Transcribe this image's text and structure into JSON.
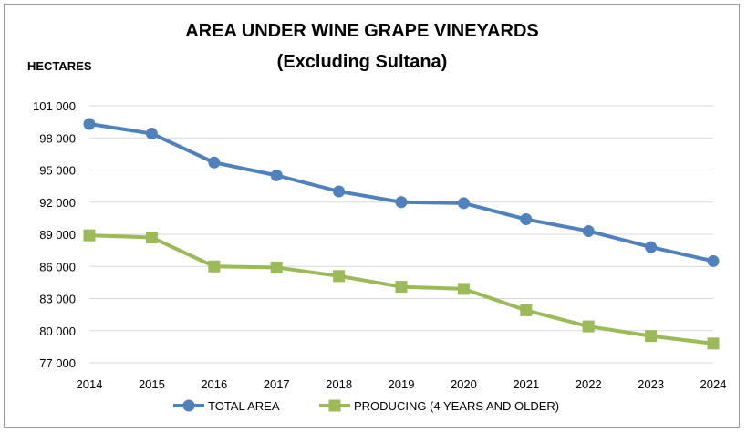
{
  "chart_data": {
    "type": "line",
    "title": "AREA UNDER WINE GRAPE VINEYARDS",
    "subtitle": "(Excluding Sultana)",
    "ylabel": "HECTARES",
    "xlabel": "",
    "x": [
      "2014",
      "2015",
      "2016",
      "2017",
      "2018",
      "2019",
      "2020",
      "2021",
      "2022",
      "2023",
      "2024"
    ],
    "ylim": [
      77000,
      101000
    ],
    "yticks": [
      77000,
      80000,
      83000,
      86000,
      89000,
      92000,
      95000,
      98000,
      101000
    ],
    "ytick_labels": [
      "77 000",
      "80 000",
      "83 000",
      "86 000",
      "89 000",
      "92 000",
      "95 000",
      "98 000",
      "101 000"
    ],
    "grid": true,
    "legend_position": "bottom",
    "series": [
      {
        "name": "TOTAL AREA",
        "color": "#4f81bd",
        "marker": "circle",
        "values": [
          99300,
          98400,
          95700,
          94500,
          93000,
          92000,
          91900,
          90400,
          89300,
          87800,
          86500
        ]
      },
      {
        "name": "PRODUCING (4 YEARS AND OLDER)",
        "color": "#9bbb59",
        "marker": "square",
        "values": [
          88900,
          88700,
          86000,
          85900,
          85100,
          84100,
          83900,
          81900,
          80400,
          79500,
          78800
        ]
      }
    ]
  }
}
